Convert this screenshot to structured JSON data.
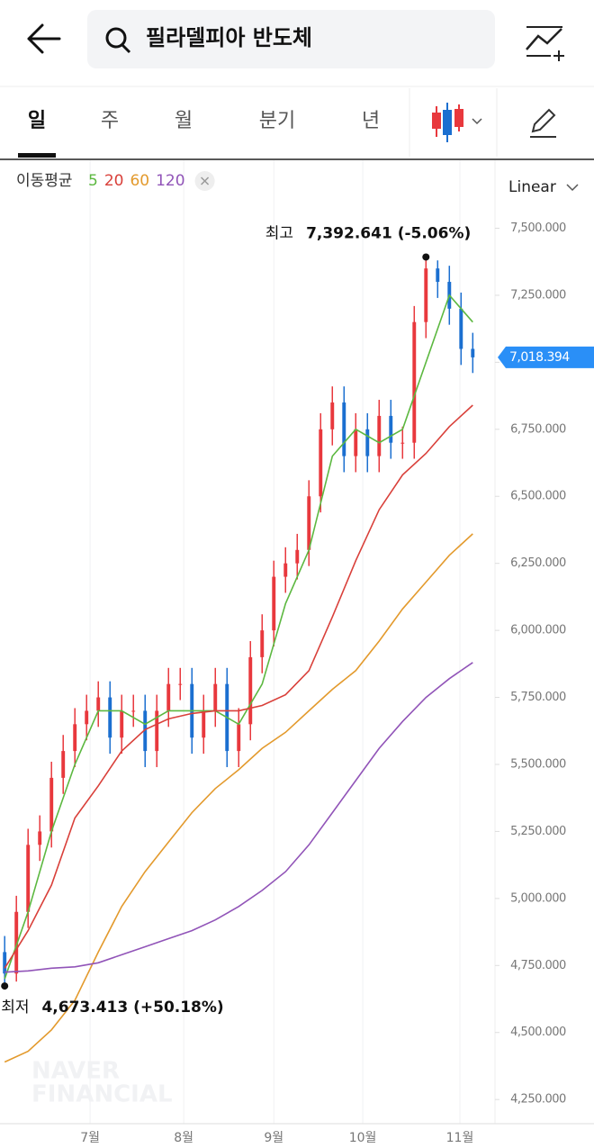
{
  "header": {
    "search": "필라델피아 반도체"
  },
  "tabs": [
    "일",
    "주",
    "월",
    "분기",
    "년"
  ],
  "chart_data": {
    "type": "candlestick",
    "ma_label": "이동평균",
    "scale_label": "Linear",
    "watermark": [
      "NAVER",
      "FINANCIAL"
    ],
    "x": [
      0,
      1,
      2,
      3,
      4,
      5,
      6,
      7,
      8,
      9,
      10,
      11,
      12,
      13,
      14,
      15,
      16,
      17,
      18,
      19,
      20,
      21,
      22,
      23,
      24,
      25,
      26,
      27,
      28,
      29,
      30,
      31,
      32,
      33,
      34,
      35,
      36,
      37,
      38,
      39,
      40
    ],
    "open": [
      4800,
      4720,
      4950,
      5200,
      5250,
      5450,
      5550,
      5650,
      5700,
      5750,
      5600,
      5700,
      5700,
      5550,
      5700,
      5800,
      5800,
      5600,
      5700,
      5800,
      5550,
      5650,
      5900,
      6000,
      6200,
      6250,
      6300,
      6500,
      6750,
      6850,
      6650,
      6750,
      6650,
      6800,
      6700,
      6700,
      7150,
      7350,
      7300,
      7200,
      7050
    ],
    "high": [
      4860,
      5010,
      5260,
      5310,
      5510,
      5610,
      5710,
      5760,
      5810,
      5810,
      5760,
      5760,
      5760,
      5760,
      5860,
      5860,
      5860,
      5760,
      5860,
      5860,
      5710,
      5960,
      6060,
      6260,
      6310,
      6360,
      6560,
      6810,
      6910,
      6910,
      6810,
      6810,
      6860,
      6860,
      6760,
      7210,
      7392.641,
      7380,
      7360,
      7260,
      7110
    ],
    "low": [
      4673.413,
      4690,
      4890,
      5140,
      5190,
      5390,
      5490,
      5590,
      5640,
      5540,
      5540,
      5640,
      5490,
      5490,
      5640,
      5740,
      5540,
      5540,
      5640,
      5490,
      5490,
      5590,
      5840,
      5940,
      6140,
      6190,
      6240,
      6440,
      6690,
      6590,
      6590,
      6590,
      6590,
      6640,
      6640,
      6640,
      7090,
      7240,
      7140,
      6990,
      6960
    ],
    "close": [
      4720,
      4950,
      5200,
      5250,
      5450,
      5550,
      5650,
      5700,
      5750,
      5600,
      5700,
      5700,
      5550,
      5700,
      5800,
      5800,
      5600,
      5700,
      5800,
      5550,
      5650,
      5900,
      6000,
      6200,
      6250,
      6300,
      6500,
      6750,
      6850,
      6650,
      6750,
      6650,
      6800,
      6700,
      6700,
      7150,
      7350,
      7300,
      7200,
      7050,
      7018.394
    ],
    "up_color": "#e8383d",
    "down_color": "#1b6fd0",
    "current_price": {
      "value": 7018.394,
      "label": "7,018.394"
    },
    "current_color": "#2a8ff7",
    "series": [
      {
        "name": "5",
        "color": "#5cb840",
        "x": [
          0,
          2,
          4,
          6,
          8,
          10,
          12,
          14,
          16,
          18,
          20,
          22,
          24,
          26,
          28,
          30,
          32,
          34,
          36,
          38,
          40
        ],
        "values": [
          4700,
          4950,
          5250,
          5500,
          5700,
          5700,
          5650,
          5700,
          5700,
          5700,
          5650,
          5800,
          6100,
          6300,
          6650,
          6750,
          6700,
          6750,
          7000,
          7250,
          7150
        ]
      },
      {
        "name": "20",
        "color": "#d9403a",
        "x": [
          0,
          2,
          4,
          6,
          8,
          10,
          12,
          14,
          16,
          18,
          20,
          22,
          24,
          26,
          28,
          30,
          32,
          34,
          36,
          38,
          40
        ],
        "values": [
          4740,
          4880,
          5050,
          5300,
          5420,
          5550,
          5630,
          5670,
          5690,
          5700,
          5700,
          5720,
          5760,
          5850,
          6050,
          6260,
          6450,
          6580,
          6660,
          6760,
          6840
        ]
      },
      {
        "name": "60",
        "color": "#e39a2d",
        "x": [
          0,
          2,
          4,
          6,
          8,
          10,
          12,
          14,
          16,
          18,
          20,
          22,
          24,
          26,
          28,
          30,
          32,
          34,
          36,
          38,
          40
        ],
        "values": [
          4390,
          4430,
          4510,
          4620,
          4800,
          4970,
          5100,
          5210,
          5320,
          5410,
          5480,
          5560,
          5620,
          5700,
          5780,
          5850,
          5960,
          6080,
          6180,
          6280,
          6360
        ]
      },
      {
        "name": "120",
        "color": "#9154b8",
        "x": [
          0,
          2,
          4,
          6,
          8,
          10,
          12,
          14,
          16,
          18,
          20,
          22,
          24,
          26,
          28,
          30,
          32,
          34,
          36,
          38,
          40
        ],
        "values": [
          4725,
          4730,
          4740,
          4745,
          4760,
          4790,
          4820,
          4850,
          4880,
          4920,
          4970,
          5030,
          5100,
          5200,
          5320,
          5440,
          5560,
          5660,
          5750,
          5820,
          5880
        ]
      }
    ],
    "annotations": [
      {
        "label": "최고",
        "text": "7,392.641 (-5.06%)",
        "index": 36,
        "at": "high"
      },
      {
        "label": "최저",
        "text": "4,673.413 (+50.18%)",
        "index": 0,
        "at": "low"
      }
    ],
    "xlim": [
      -0.4,
      41.9
    ],
    "xticks": [
      {
        "value": 7.3,
        "label": "7월"
      },
      {
        "value": 15.3,
        "label": "8월"
      },
      {
        "value": 23,
        "label": "9월"
      },
      {
        "value": 30.6,
        "label": "10월"
      },
      {
        "value": 38.9,
        "label": "11월"
      }
    ],
    "ylim": [
      4170,
      7730
    ],
    "yticks": [
      {
        "value": 4250,
        "label": "4,250.000"
      },
      {
        "value": 4500,
        "label": "4,500.000"
      },
      {
        "value": 4750,
        "label": "4,750.000"
      },
      {
        "value": 5000,
        "label": "5,000.000"
      },
      {
        "value": 5250,
        "label": "5,250.000"
      },
      {
        "value": 5500,
        "label": "5,500.000"
      },
      {
        "value": 5750,
        "label": "5,750.000"
      },
      {
        "value": 6000,
        "label": "6,000.000"
      },
      {
        "value": 6250,
        "label": "6,250.000"
      },
      {
        "value": 6500,
        "label": "6,500.000"
      },
      {
        "value": 6750,
        "label": "6,750.000"
      },
      {
        "value": 7000,
        "label": "7,000.000"
      },
      {
        "value": 7250,
        "label": "7,250.000"
      },
      {
        "value": 7500,
        "label": "7,500.000"
      }
    ],
    "grid": "x"
  }
}
